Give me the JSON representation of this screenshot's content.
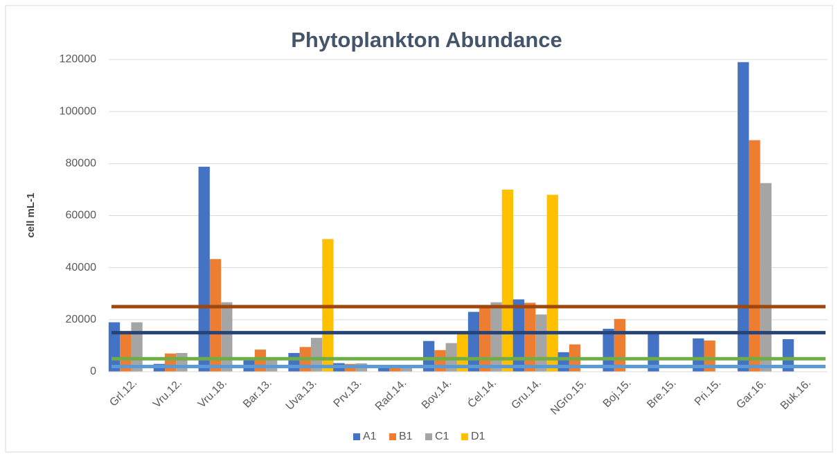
{
  "chart_data": {
    "type": "bar",
    "title": "Phytoplankton Abundance",
    "y_label": "cell mL-1",
    "categories": [
      "Grl.12.",
      "Vru.12.",
      "Vru.18.",
      "Bar.13.",
      "Uva.13.",
      "Prv.13.",
      "Rad.14.",
      "Bov.14.",
      "Ćel.14.",
      "Gru.14.",
      "NGro.15.",
      "Boj.15.",
      "Bre.15.",
      "Pri.15.",
      "Gar.16.",
      "Buk.16."
    ],
    "series": [
      {
        "name": "A1",
        "color": "#4472c4",
        "values": [
          19000,
          3000,
          78800,
          4500,
          7200,
          3300,
          1500,
          11800,
          23000,
          27800,
          7500,
          16500,
          15500,
          12800,
          119000,
          12500
        ]
      },
      {
        "name": "B1",
        "color": "#ed7d31",
        "values": [
          14500,
          7000,
          43300,
          8500,
          9500,
          3000,
          1500,
          8300,
          25500,
          26500,
          10500,
          20300,
          null,
          12000,
          89000,
          null
        ]
      },
      {
        "name": "C1",
        "color": "#a5a5a5",
        "values": [
          19000,
          7200,
          26700,
          4500,
          13000,
          3200,
          1500,
          11000,
          26700,
          22000,
          null,
          null,
          null,
          null,
          72500,
          null
        ]
      },
      {
        "name": "D1",
        "color": "#ffc000",
        "values": [
          null,
          null,
          null,
          null,
          51000,
          null,
          null,
          14500,
          70000,
          68000,
          null,
          null,
          null,
          null,
          null,
          null
        ]
      }
    ],
    "reference_lines": [
      {
        "value": 25000,
        "color": "#9e480e"
      },
      {
        "value": 15000,
        "color": "#264478"
      },
      {
        "value": 5000,
        "color": "#70ad47"
      },
      {
        "value": 2000,
        "color": "#5b9bd5"
      }
    ],
    "ylim": [
      0,
      120000
    ],
    "yticks": [
      0,
      20000,
      40000,
      60000,
      80000,
      100000,
      120000
    ],
    "grid": true,
    "legend": "bottom"
  }
}
